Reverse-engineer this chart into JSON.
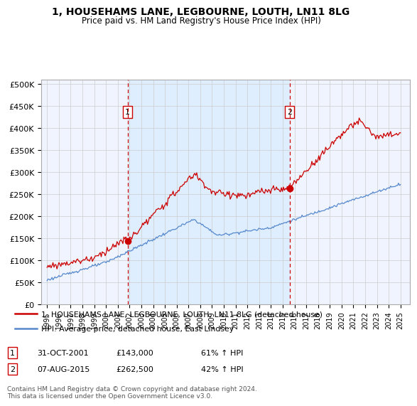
{
  "title": "1, HOUSEHAMS LANE, LEGBOURNE, LOUTH, LN11 8LG",
  "subtitle": "Price paid vs. HM Land Registry's House Price Index (HPI)",
  "legend_line1": "1, HOUSEHAMS LANE, LEGBOURNE, LOUTH, LN11 8LG (detached house)",
  "legend_line2": "HPI: Average price, detached house, East Lindsey",
  "table_rows": [
    {
      "num": "1",
      "date": "31-OCT-2001",
      "price": "£143,000",
      "hpi": "61% ↑ HPI"
    },
    {
      "num": "2",
      "date": "07-AUG-2015",
      "price": "£262,500",
      "hpi": "42% ↑ HPI"
    }
  ],
  "footnote": "Contains HM Land Registry data © Crown copyright and database right 2024.\nThis data is licensed under the Open Government Licence v3.0.",
  "sale_color": "#cc0000",
  "hpi_color": "#5588cc",
  "vline_color": "#cc0000",
  "shade_color": "#ddeeff",
  "marker1_x": 2001.83,
  "marker1_y": 143000,
  "marker2_x": 2015.58,
  "marker2_y": 262500,
  "ylim": [
    0,
    510000
  ],
  "xlim_start": 1994.5,
  "xlim_end": 2025.8,
  "background_color": "#f0f4ff",
  "grid_color": "#cccccc",
  "yticks": [
    0,
    50000,
    100000,
    150000,
    200000,
    250000,
    300000,
    350000,
    400000,
    450000,
    500000
  ],
  "xticks": [
    1995,
    1996,
    1997,
    1998,
    1999,
    2000,
    2001,
    2002,
    2003,
    2004,
    2005,
    2006,
    2007,
    2008,
    2009,
    2010,
    2011,
    2012,
    2013,
    2014,
    2015,
    2016,
    2017,
    2018,
    2019,
    2020,
    2021,
    2022,
    2023,
    2024,
    2025
  ]
}
